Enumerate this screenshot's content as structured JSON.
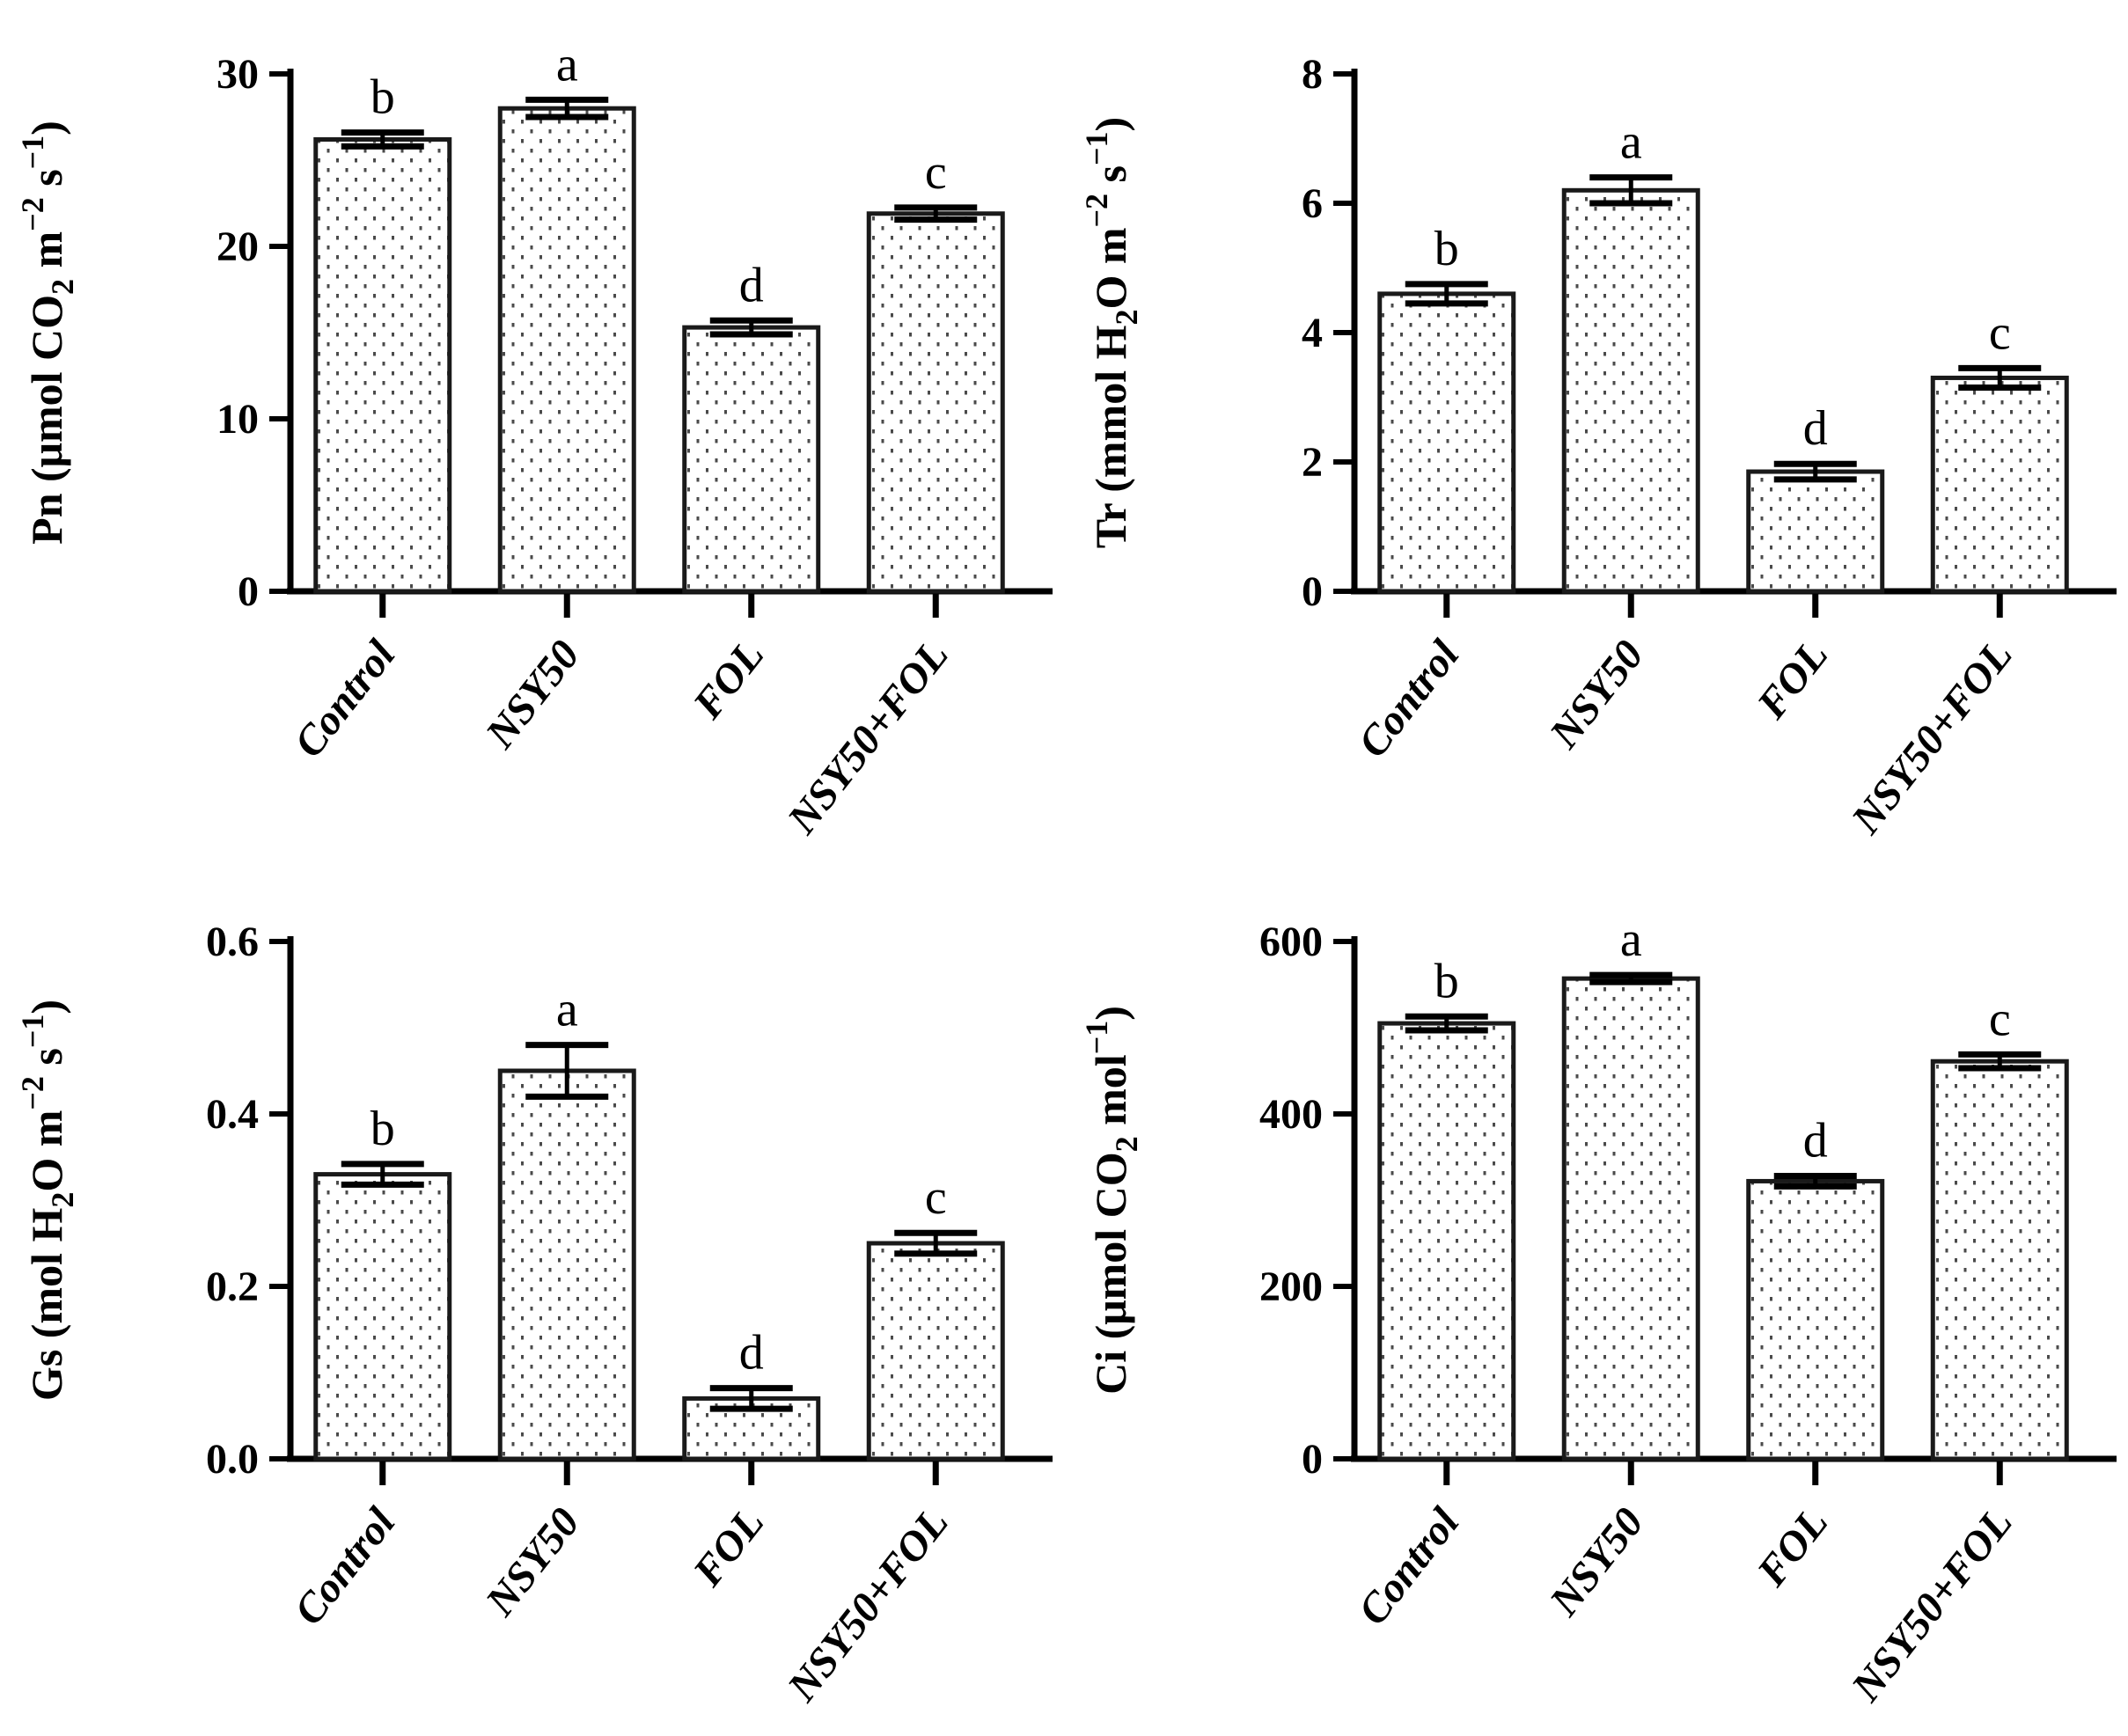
{
  "figure": {
    "description_colors": {
      "background": "#ffffff",
      "axis": "#000000",
      "bar_fill": "#ffffff",
      "bar_border": "#1a1a1a",
      "pattern_dot": "#4a4a4a",
      "text": "#000000"
    }
  },
  "chart_data": [
    {
      "type": "bar",
      "panel": "top-left",
      "ylabel_plain": "Pn (μmol CO2 m−2 s−1)",
      "ylabel_segments": [
        {
          "t": "Pn (μmol CO",
          "s": "n"
        },
        {
          "t": "2",
          "s": "sub"
        },
        {
          "t": " m",
          "s": "n"
        },
        {
          "t": "−2",
          "s": "sup"
        },
        {
          "t": " s",
          "s": "n"
        },
        {
          "t": "−1",
          "s": "sup"
        },
        {
          "t": ")",
          "s": "n"
        }
      ],
      "categories": [
        "Control",
        "NSY50",
        "FOL",
        "NSY50+FOL"
      ],
      "values": [
        26.2,
        28.0,
        15.3,
        21.9
      ],
      "errors": [
        0.4,
        0.5,
        0.4,
        0.35
      ],
      "sig_letters": [
        "b",
        "a",
        "d",
        "c"
      ],
      "ylim": [
        0,
        30
      ],
      "yticks": [
        0,
        10,
        20,
        30
      ],
      "ytick_labels": [
        "0",
        "10",
        "20",
        "30"
      ]
    },
    {
      "type": "bar",
      "panel": "top-right",
      "ylabel_plain": "Tr (mmol H2O m−2 s−1)",
      "ylabel_segments": [
        {
          "t": "Tr (mmol H",
          "s": "n"
        },
        {
          "t": "2",
          "s": "sub"
        },
        {
          "t": "O m",
          "s": "n"
        },
        {
          "t": "−2",
          "s": "sup"
        },
        {
          "t": " s",
          "s": "n"
        },
        {
          "t": "−1",
          "s": "sup"
        },
        {
          "t": ")",
          "s": "n"
        }
      ],
      "categories": [
        "Control",
        "NSY50",
        "FOL",
        "NSY50+FOL"
      ],
      "values": [
        4.6,
        6.2,
        1.85,
        3.3
      ],
      "errors": [
        0.15,
        0.2,
        0.12,
        0.15
      ],
      "sig_letters": [
        "b",
        "a",
        "d",
        "c"
      ],
      "ylim": [
        0,
        8
      ],
      "yticks": [
        0,
        2,
        4,
        6,
        8
      ],
      "ytick_labels": [
        "0",
        "2",
        "4",
        "6",
        "8"
      ]
    },
    {
      "type": "bar",
      "panel": "bottom-left",
      "ylabel_plain": "Gs (mol H2O m−2 s−1)",
      "ylabel_segments": [
        {
          "t": "Gs (mol H",
          "s": "n"
        },
        {
          "t": "2",
          "s": "sub"
        },
        {
          "t": "O m",
          "s": "n"
        },
        {
          "t": "−2",
          "s": "sup"
        },
        {
          "t": " s",
          "s": "n"
        },
        {
          "t": "−1",
          "s": "sup"
        },
        {
          "t": ")",
          "s": "n"
        }
      ],
      "categories": [
        "Control",
        "NSY50",
        "FOL",
        "NSY50+FOL"
      ],
      "values": [
        0.33,
        0.45,
        0.07,
        0.25
      ],
      "errors": [
        0.012,
        0.03,
        0.012,
        0.012
      ],
      "sig_letters": [
        "b",
        "a",
        "d",
        "c"
      ],
      "ylim": [
        0,
        0.6
      ],
      "yticks": [
        0,
        0.2,
        0.4,
        0.6
      ],
      "ytick_labels": [
        "0.0",
        "0.2",
        "0.4",
        "0.6"
      ]
    },
    {
      "type": "bar",
      "panel": "bottom-right",
      "ylabel_plain": "Ci (μmol CO2 mol−1)",
      "ylabel_segments": [
        {
          "t": "Ci (μmol CO",
          "s": "n"
        },
        {
          "t": "2",
          "s": "sub"
        },
        {
          "t": " mol",
          "s": "n"
        },
        {
          "t": "−1",
          "s": "sup"
        },
        {
          "t": ")",
          "s": "n"
        }
      ],
      "categories": [
        "Control",
        "NSY50",
        "FOL",
        "NSY50+FOL"
      ],
      "values": [
        505,
        557,
        322,
        461
      ],
      "errors": [
        8,
        4,
        6,
        8
      ],
      "sig_letters": [
        "b",
        "a",
        "d",
        "c"
      ],
      "ylim": [
        0,
        600
      ],
      "yticks": [
        0,
        200,
        400,
        600
      ],
      "ytick_labels": [
        "0",
        "200",
        "400",
        "600"
      ]
    }
  ]
}
